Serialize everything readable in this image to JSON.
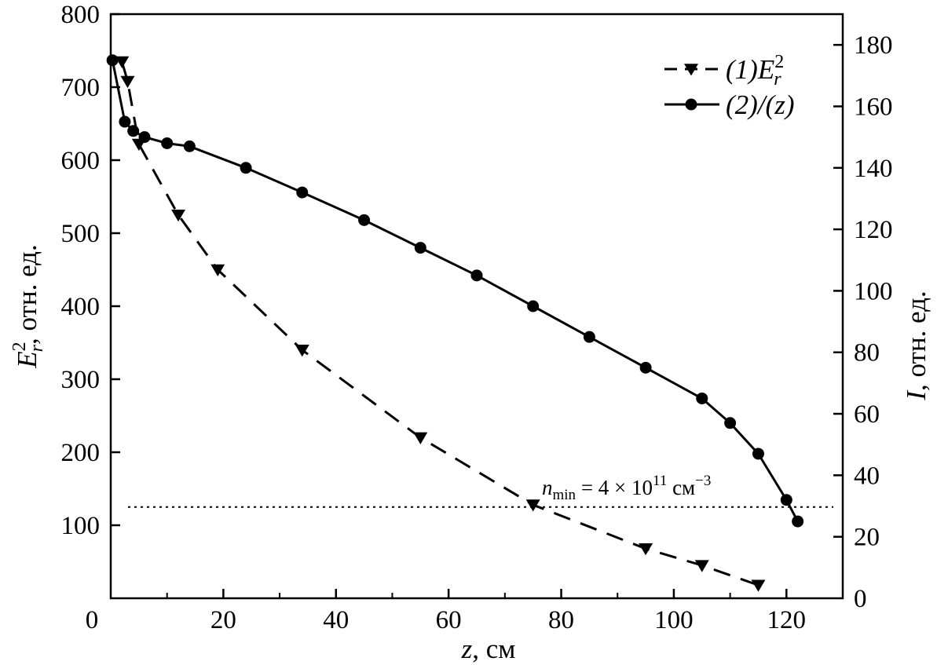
{
  "chart_data": {
    "type": "line",
    "x": {
      "label_var": "z",
      "label_unit": ", см",
      "range": [
        0,
        130
      ],
      "ticks": [
        0,
        20,
        40,
        60,
        80,
        100,
        120
      ]
    },
    "y_left": {
      "label_var": "E",
      "label_sup": "2",
      "label_sub": "r",
      "label_unit": ", отн. ед.",
      "range": [
        0,
        800
      ],
      "ticks": [
        100,
        200,
        300,
        400,
        500,
        600,
        700,
        800
      ]
    },
    "y_right": {
      "label_var": "I",
      "label_unit": ", отн. ед.",
      "range": [
        0,
        190
      ],
      "ticks": [
        0,
        20,
        40,
        60,
        80,
        100,
        120,
        140,
        160,
        180
      ]
    },
    "series": [
      {
        "id": "series-1",
        "name_prefix": "(",
        "name_num": "1",
        "name_suffix": ")",
        "name_var": "E",
        "name_sup": "2",
        "name_sub": "r",
        "axis": "left",
        "marker": "triangle-down",
        "line": "dashed",
        "x": [
          2,
          3,
          5,
          12,
          19,
          34,
          55,
          75,
          95,
          105,
          115
        ],
        "y": [
          735,
          708,
          622,
          525,
          450,
          340,
          220,
          128,
          68,
          45,
          18
        ]
      },
      {
        "id": "series-2",
        "name_prefix": "(",
        "name_num": "2",
        "name_suffix": ")/(",
        "name_var": "z",
        "name_tail": ")",
        "axis": "right",
        "marker": "circle",
        "line": "solid",
        "x": [
          0.3,
          2.5,
          4,
          6,
          10,
          14,
          24,
          34,
          45,
          55,
          65,
          75,
          85,
          95,
          105,
          110,
          115,
          120,
          122
        ],
        "y": [
          175,
          155,
          152,
          150,
          148,
          147,
          140,
          132,
          123,
          114,
          105,
          95,
          85,
          75,
          65,
          57,
          47,
          32,
          25
        ]
      }
    ],
    "threshold": {
      "axis": "left",
      "value": 125,
      "label_var": "n",
      "label_sub": "min",
      "label_eq": " = 4 × 10",
      "label_exp": "11",
      "label_unit": " см",
      "label_unit_exp": "−3"
    },
    "legend_position": "top-right",
    "grid": false
  }
}
